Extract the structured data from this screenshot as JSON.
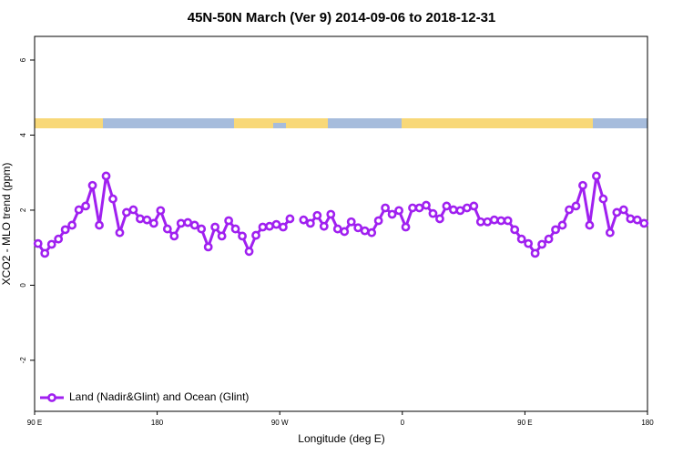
{
  "chart_data": {
    "type": "line",
    "title": "45N-50N March (Ver 9)   2014-09-06 to 2018-12-31",
    "x_label": "Longitude (deg E)",
    "y_label": "XCO2 - MLO trend (ppm)",
    "x": [
      92.5,
      97.5,
      102.5,
      107.5,
      112.5,
      117.5,
      122.5,
      127.5,
      132.5,
      137.5,
      142.5,
      147.5,
      152.5,
      157.5,
      162.5,
      167.5,
      172.5,
      177.5,
      182.5,
      187.5,
      192.5,
      197.5,
      202.5,
      207.5,
      212.5,
      217.5,
      222.5,
      227.5,
      232.5,
      237.5,
      242.5,
      247.5,
      252.5,
      257.5,
      262.5,
      267.5,
      272.5,
      277.5,
      282.5,
      287.5,
      292.5,
      297.5,
      302.5,
      307.5,
      312.5,
      317.5,
      322.5,
      327.5,
      332.5,
      337.5,
      342.5,
      347.5,
      352.5,
      357.5,
      362.5,
      367.5,
      372.5,
      377.5,
      382.5,
      387.5,
      392.5,
      397.5,
      402.5,
      407.5,
      412.5,
      417.5,
      422.5,
      427.5,
      432.5,
      437.5,
      442.5,
      447.5,
      452.5,
      457.5,
      462.5,
      467.5,
      472.5,
      477.5,
      482.5,
      487.5,
      492.5,
      497.5,
      502.5,
      507.5,
      512.5,
      517.5,
      522.5,
      527.5,
      532.5,
      537.5
    ],
    "series": [
      {
        "name": "Land (Nadir&Glint) and Ocean (Glint)",
        "color": "#a020f0",
        "values": [
          1.11,
          0.85,
          1.09,
          1.23,
          1.48,
          1.6,
          2.01,
          2.11,
          2.66,
          1.6,
          2.91,
          2.3,
          1.4,
          1.94,
          2.01,
          1.77,
          1.74,
          1.65,
          1.99,
          1.5,
          1.31,
          1.65,
          1.67,
          1.6,
          1.5,
          1.02,
          1.55,
          1.31,
          1.72,
          1.5,
          1.31,
          0.9,
          1.33,
          1.55,
          1.57,
          1.62,
          1.55,
          1.77,
          null,
          1.74,
          1.65,
          1.86,
          1.57,
          1.89,
          1.5,
          1.43,
          1.69,
          1.53,
          1.45,
          1.4,
          1.72,
          2.06,
          1.89,
          1.99,
          1.55,
          2.06,
          2.06,
          2.13,
          1.91,
          1.77,
          2.11,
          2.01,
          1.99,
          2.06,
          2.11,
          1.69,
          1.69,
          1.74,
          1.72,
          1.72,
          1.48,
          1.23,
          1.11,
          0.85,
          1.09,
          1.23,
          1.48,
          1.6,
          2.01,
          2.11,
          2.66,
          1.6,
          2.91,
          2.3,
          1.4,
          1.94,
          2.01,
          1.77,
          1.74,
          1.65
        ]
      }
    ],
    "xlim": [
      90,
      540
    ],
    "xticks": [
      {
        "value": 90,
        "label": "90 E"
      },
      {
        "value": 180,
        "label": "180"
      },
      {
        "value": 270,
        "label": "90 W"
      },
      {
        "value": 360,
        "label": "0"
      },
      {
        "value": 450,
        "label": "90 E"
      },
      {
        "value": 540,
        "label": "180"
      }
    ],
    "ylim": [
      -3.36,
      6.63
    ],
    "yticks": [
      -2,
      0,
      2,
      4,
      6
    ],
    "legend": "bottom-left"
  }
}
